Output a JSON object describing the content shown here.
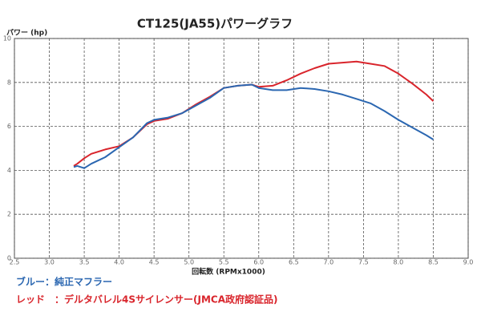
{
  "chart_data": {
    "type": "line",
    "title": "CT125(JA55)パワーグラフ",
    "y_label": "パワー (hp)",
    "x_label": "回転数 (RPMx1000)",
    "annotations": [
      {
        "text": "ブルー：純正マフラー",
        "color": "#2b67b1"
      },
      {
        "text": "レッド　：デルタバレル4Sサイレンサー(JMCA政府認証品)",
        "color": "#d9252c"
      }
    ],
    "x": [
      3.35,
      3.4,
      3.5,
      3.6,
      3.8,
      4.0,
      4.2,
      4.4,
      4.5,
      4.7,
      4.9,
      5.1,
      5.3,
      5.5,
      5.7,
      5.9,
      6.0,
      6.2,
      6.4,
      6.6,
      6.8,
      7.0,
      7.2,
      7.4,
      7.6,
      7.8,
      8.0,
      8.2,
      8.4,
      8.5
    ],
    "series": [
      {
        "color": "#d9252c",
        "values": [
          4.2,
          4.3,
          4.55,
          4.75,
          4.95,
          5.1,
          5.5,
          6.1,
          6.25,
          6.35,
          6.6,
          7.0,
          7.35,
          7.75,
          7.85,
          7.9,
          7.8,
          7.85,
          8.1,
          8.4,
          8.65,
          8.85,
          8.9,
          8.95,
          8.85,
          8.75,
          8.4,
          7.95,
          7.45,
          7.15
        ]
      },
      {
        "color": "#2b67b1",
        "values": [
          4.15,
          4.2,
          4.1,
          4.3,
          4.6,
          5.05,
          5.5,
          6.15,
          6.3,
          6.4,
          6.6,
          6.95,
          7.3,
          7.75,
          7.85,
          7.9,
          7.75,
          7.65,
          7.65,
          7.75,
          7.7,
          7.6,
          7.45,
          7.25,
          7.05,
          6.7,
          6.3,
          5.95,
          5.6,
          5.4
        ]
      }
    ],
    "xlim": [
      2.5,
      9.0
    ],
    "xticks": [
      2.5,
      {
        "value": 3,
        "label": "3.0"
      },
      3.5,
      {
        "value": 4,
        "label": "4.0"
      },
      4.5,
      {
        "value": 5,
        "label": "5.0"
      },
      5.5,
      {
        "value": 6,
        "label": "6.0"
      },
      6.5,
      {
        "value": 7,
        "label": "7.0"
      },
      7.5,
      {
        "value": 8,
        "label": "8.0"
      },
      8.5,
      {
        "value": 9,
        "label": "9.0"
      }
    ],
    "ylim": [
      0,
      10
    ],
    "yticks": [
      0,
      2,
      4,
      6,
      8,
      10
    ],
    "grid": true
  }
}
